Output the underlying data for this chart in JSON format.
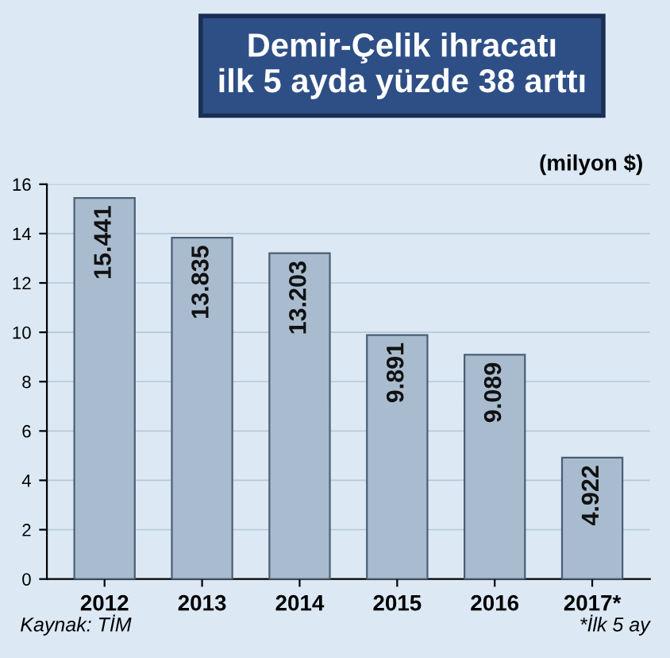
{
  "chart_data": {
    "type": "bar",
    "title": "Demir-Çelik ihracatı\nilk 5 ayda yüzde 38 arttı",
    "categories": [
      "2012",
      "2013",
      "2014",
      "2015",
      "2016",
      "2017*"
    ],
    "values": [
      15.441,
      13.835,
      13.203,
      9.891,
      9.089,
      4.922
    ],
    "color": "#a9bccf",
    "ylim": [
      0,
      16
    ],
    "yticks": [
      0,
      2,
      4,
      6,
      8,
      10,
      12,
      14,
      16
    ],
    "grid": "y",
    "data_labels": true,
    "annotations": [
      "(milyon $)",
      "Kaynak: TİM",
      "*İlk 5 ay"
    ]
  }
}
